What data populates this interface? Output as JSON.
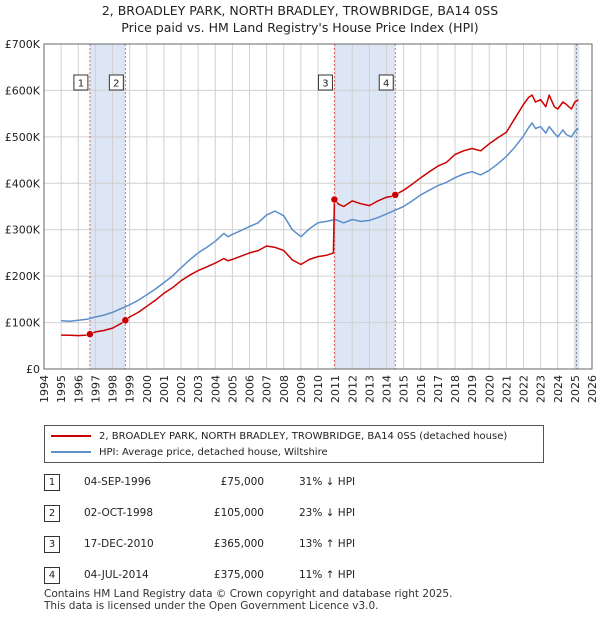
{
  "title_line1": "2, BROADLEY PARK, NORTH BRADLEY, TROWBRIDGE, BA14 0SS",
  "title_line2": "Price paid vs. HM Land Registry's House Price Index (HPI)",
  "legend": {
    "property_label": "2, BROADLEY PARK, NORTH BRADLEY, TROWBRIDGE, BA14 0SS (detached house)",
    "hpi_label": "HPI: Average price, detached house, Wiltshire"
  },
  "sales": [
    {
      "num": "1",
      "date": "04-SEP-1996",
      "price": "£75,000",
      "hpi": "31% ↓ HPI"
    },
    {
      "num": "2",
      "date": "02-OCT-1998",
      "price": "£105,000",
      "hpi": "23% ↓ HPI"
    },
    {
      "num": "3",
      "date": "17-DEC-2010",
      "price": "£365,000",
      "hpi": "13% ↑ HPI"
    },
    {
      "num": "4",
      "date": "04-JUL-2014",
      "price": "£375,000",
      "hpi": "11% ↑ HPI"
    }
  ],
  "footer_line1": "Contains HM Land Registry data © Crown copyright and database right 2025.",
  "footer_line2": "This data is licensed under the Open Government Licence v3.0.",
  "colors": {
    "property": "#cc0000",
    "hpi": "#5b8fc9",
    "shade": "#dde6f4",
    "grid": "#d0d0d0",
    "vline": "#e06060"
  },
  "chart_data": {
    "type": "line",
    "title": "2, BROADLEY PARK, NORTH BRADLEY, TROWBRIDGE, BA14 0SS — Price paid vs. HM Land Registry's House Price Index (HPI)",
    "xlabel": "",
    "ylabel": "",
    "xlim": [
      1994,
      2026
    ],
    "ylim": [
      0,
      700000
    ],
    "x_ticks": [
      1994,
      1995,
      1996,
      1997,
      1998,
      1999,
      2000,
      2001,
      2002,
      2003,
      2004,
      2005,
      2006,
      2007,
      2008,
      2009,
      2010,
      2011,
      2012,
      2013,
      2014,
      2015,
      2016,
      2017,
      2018,
      2019,
      2020,
      2021,
      2022,
      2023,
      2024,
      2025,
      2026
    ],
    "y_ticks": [
      0,
      100000,
      200000,
      300000,
      400000,
      500000,
      600000,
      700000
    ],
    "y_tick_labels": [
      "£0",
      "£100K",
      "£200K",
      "£300K",
      "£400K",
      "£500K",
      "£600K",
      "£700K"
    ],
    "grid": true,
    "shaded_ranges": [
      [
        1996.68,
        1998.75
      ],
      [
        2010.96,
        2014.51
      ],
      [
        2025.0,
        2025.25
      ]
    ],
    "series": [
      {
        "name": "2, BROADLEY PARK, NORTH BRADLEY, TROWBRIDGE, BA14 0SS (detached house)",
        "x": [
          1995.0,
          1995.5,
          1996.0,
          1996.5,
          1996.68,
          1997.0,
          1997.5,
          1998.0,
          1998.5,
          1998.75,
          1999.0,
          1999.5,
          2000.0,
          2000.5,
          2001.0,
          2001.5,
          2002.0,
          2002.5,
          2003.0,
          2003.5,
          2004.0,
          2004.5,
          2004.75,
          2005.0,
          2005.5,
          2006.0,
          2006.5,
          2007.0,
          2007.5,
          2008.0,
          2008.5,
          2009.0,
          2009.5,
          2010.0,
          2010.5,
          2010.9,
          2010.96,
          2011.2,
          2011.5,
          2012.0,
          2012.5,
          2013.0,
          2013.5,
          2014.0,
          2014.5,
          2014.51,
          2015.0,
          2015.5,
          2016.0,
          2016.5,
          2017.0,
          2017.5,
          2018.0,
          2018.5,
          2019.0,
          2019.5,
          2020.0,
          2020.5,
          2021.0,
          2021.5,
          2022.0,
          2022.3,
          2022.5,
          2022.7,
          2023.0,
          2023.3,
          2023.5,
          2023.8,
          2024.0,
          2024.3,
          2024.5,
          2024.8,
          2025.0,
          2025.2
        ],
        "values": [
          73000,
          72500,
          72000,
          73000,
          75000,
          80000,
          83000,
          88000,
          98000,
          105000,
          112000,
          122000,
          135000,
          148000,
          163000,
          175000,
          190000,
          202000,
          212000,
          220000,
          228000,
          238000,
          233000,
          236000,
          243000,
          250000,
          255000,
          265000,
          262000,
          255000,
          235000,
          225000,
          236000,
          242000,
          245000,
          250000,
          365000,
          355000,
          350000,
          362000,
          356000,
          352000,
          362000,
          370000,
          373000,
          375000,
          385000,
          398000,
          412000,
          425000,
          437000,
          445000,
          462000,
          470000,
          475000,
          470000,
          485000,
          498000,
          510000,
          540000,
          570000,
          585000,
          590000,
          575000,
          580000,
          565000,
          590000,
          565000,
          560000,
          575000,
          570000,
          560000,
          575000,
          580000
        ]
      },
      {
        "name": "HPI: Average price, detached house, Wiltshire",
        "x": [
          1995.0,
          1995.5,
          1996.0,
          1996.5,
          1997.0,
          1997.5,
          1998.0,
          1998.5,
          1999.0,
          1999.5,
          2000.0,
          2000.5,
          2001.0,
          2001.5,
          2002.0,
          2002.5,
          2003.0,
          2003.5,
          2004.0,
          2004.5,
          2004.75,
          2005.0,
          2005.5,
          2006.0,
          2006.5,
          2007.0,
          2007.5,
          2008.0,
          2008.5,
          2009.0,
          2009.5,
          2010.0,
          2010.5,
          2011.0,
          2011.5,
          2012.0,
          2012.5,
          2013.0,
          2013.5,
          2014.0,
          2014.5,
          2015.0,
          2015.5,
          2016.0,
          2016.5,
          2017.0,
          2017.5,
          2018.0,
          2018.5,
          2019.0,
          2019.5,
          2020.0,
          2020.5,
          2021.0,
          2021.5,
          2022.0,
          2022.3,
          2022.5,
          2022.7,
          2023.0,
          2023.3,
          2023.5,
          2023.8,
          2024.0,
          2024.3,
          2024.5,
          2024.8,
          2025.0,
          2025.2
        ],
        "values": [
          104000,
          103000,
          105000,
          107000,
          112000,
          116000,
          122000,
          130000,
          138000,
          148000,
          160000,
          172000,
          186000,
          200000,
          218000,
          235000,
          250000,
          262000,
          275000,
          292000,
          285000,
          290000,
          298000,
          307000,
          315000,
          332000,
          340000,
          330000,
          300000,
          285000,
          302000,
          315000,
          318000,
          322000,
          315000,
          322000,
          318000,
          320000,
          326000,
          334000,
          342000,
          350000,
          362000,
          375000,
          385000,
          395000,
          402000,
          412000,
          420000,
          425000,
          418000,
          428000,
          442000,
          458000,
          478000,
          502000,
          520000,
          530000,
          518000,
          522000,
          508000,
          522000,
          508000,
          500000,
          515000,
          505000,
          500000,
          512000,
          518000
        ]
      }
    ],
    "markers": [
      {
        "label": "1",
        "x": 1996.68,
        "value": 75000
      },
      {
        "label": "2",
        "x": 1998.75,
        "value": 105000
      },
      {
        "label": "3",
        "x": 2010.96,
        "value": 365000
      },
      {
        "label": "4",
        "x": 2014.51,
        "value": 375000
      }
    ]
  }
}
